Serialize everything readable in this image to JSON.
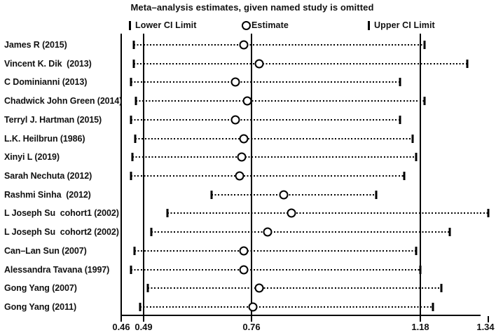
{
  "title": "Meta–analysis estimates, given named study is omitted",
  "legend": {
    "lower": "Lower CI Limit",
    "estimate": "Estimate",
    "upper": "Upper CI Limit"
  },
  "axis": {
    "ticks": [
      "0.46",
      "0.49",
      "0.76",
      "1.18",
      "1.34"
    ],
    "frame_line": 0.46,
    "reference_lines": [
      0.49,
      0.76,
      1.18
    ]
  },
  "colors": {
    "foreground": "#000000",
    "background": "#ffffff"
  },
  "chart_data": {
    "type": "scatter",
    "subtype": "leave-one-out meta-analysis influence (forest) plot",
    "title": "Meta–analysis estimates, given named study is omitted",
    "xlabel": "",
    "ylabel": "",
    "xlim": [
      0.46,
      1.34
    ],
    "x_ticks": [
      0.46,
      0.49,
      0.76,
      1.18,
      1.34
    ],
    "overall": {
      "lower_ci": 0.49,
      "estimate": 0.76,
      "upper_ci": 1.18
    },
    "legend_entries": [
      "Lower CI Limit",
      "Estimate",
      "Upper CI Limit"
    ],
    "grid": false,
    "studies": [
      {
        "label": "James R (2015)",
        "lower": 0.477,
        "estimate": 0.74,
        "upper": 1.19
      },
      {
        "label": "Vincent K. Dik  (2013)",
        "lower": 0.477,
        "estimate": 0.78,
        "upper": 1.29
      },
      {
        "label": "C Dominianni (2013)",
        "lower": 0.473,
        "estimate": 0.72,
        "upper": 1.13
      },
      {
        "label": "Chadwick John Green (2014)",
        "lower": 0.48,
        "estimate": 0.75,
        "upper": 1.19
      },
      {
        "label": "Terryl J. Hartman (2015)",
        "lower": 0.473,
        "estimate": 0.72,
        "upper": 1.13
      },
      {
        "label": "L.K. Heilbrun (1986)",
        "lower": 0.479,
        "estimate": 0.74,
        "upper": 1.16
      },
      {
        "label": "Xinyi L (2019)",
        "lower": 0.475,
        "estimate": 0.735,
        "upper": 1.17
      },
      {
        "label": "Sarah Nechuta (2012)",
        "lower": 0.473,
        "estimate": 0.73,
        "upper": 1.14
      },
      {
        "label": "Rashmi Sinha  (2012)",
        "lower": 0.66,
        "estimate": 0.84,
        "upper": 1.07
      },
      {
        "label": "L Joseph Su  cohort1 (2002)",
        "lower": 0.55,
        "estimate": 0.86,
        "upper": 1.34
      },
      {
        "label": "L Joseph Su  cohort2 (2002)",
        "lower": 0.51,
        "estimate": 0.8,
        "upper": 1.25
      },
      {
        "label": "Can–Lan Sun (2007)",
        "lower": 0.478,
        "estimate": 0.74,
        "upper": 1.17
      },
      {
        "label": "Alessandra Tavana (1997)",
        "lower": 0.473,
        "estimate": 0.74,
        "upper": 1.18
      },
      {
        "label": "Gong Yang (2007)",
        "lower": 0.5,
        "estimate": 0.78,
        "upper": 1.23
      },
      {
        "label": "Gong Yang (2011)",
        "lower": 0.485,
        "estimate": 0.763,
        "upper": 1.21
      }
    ]
  }
}
